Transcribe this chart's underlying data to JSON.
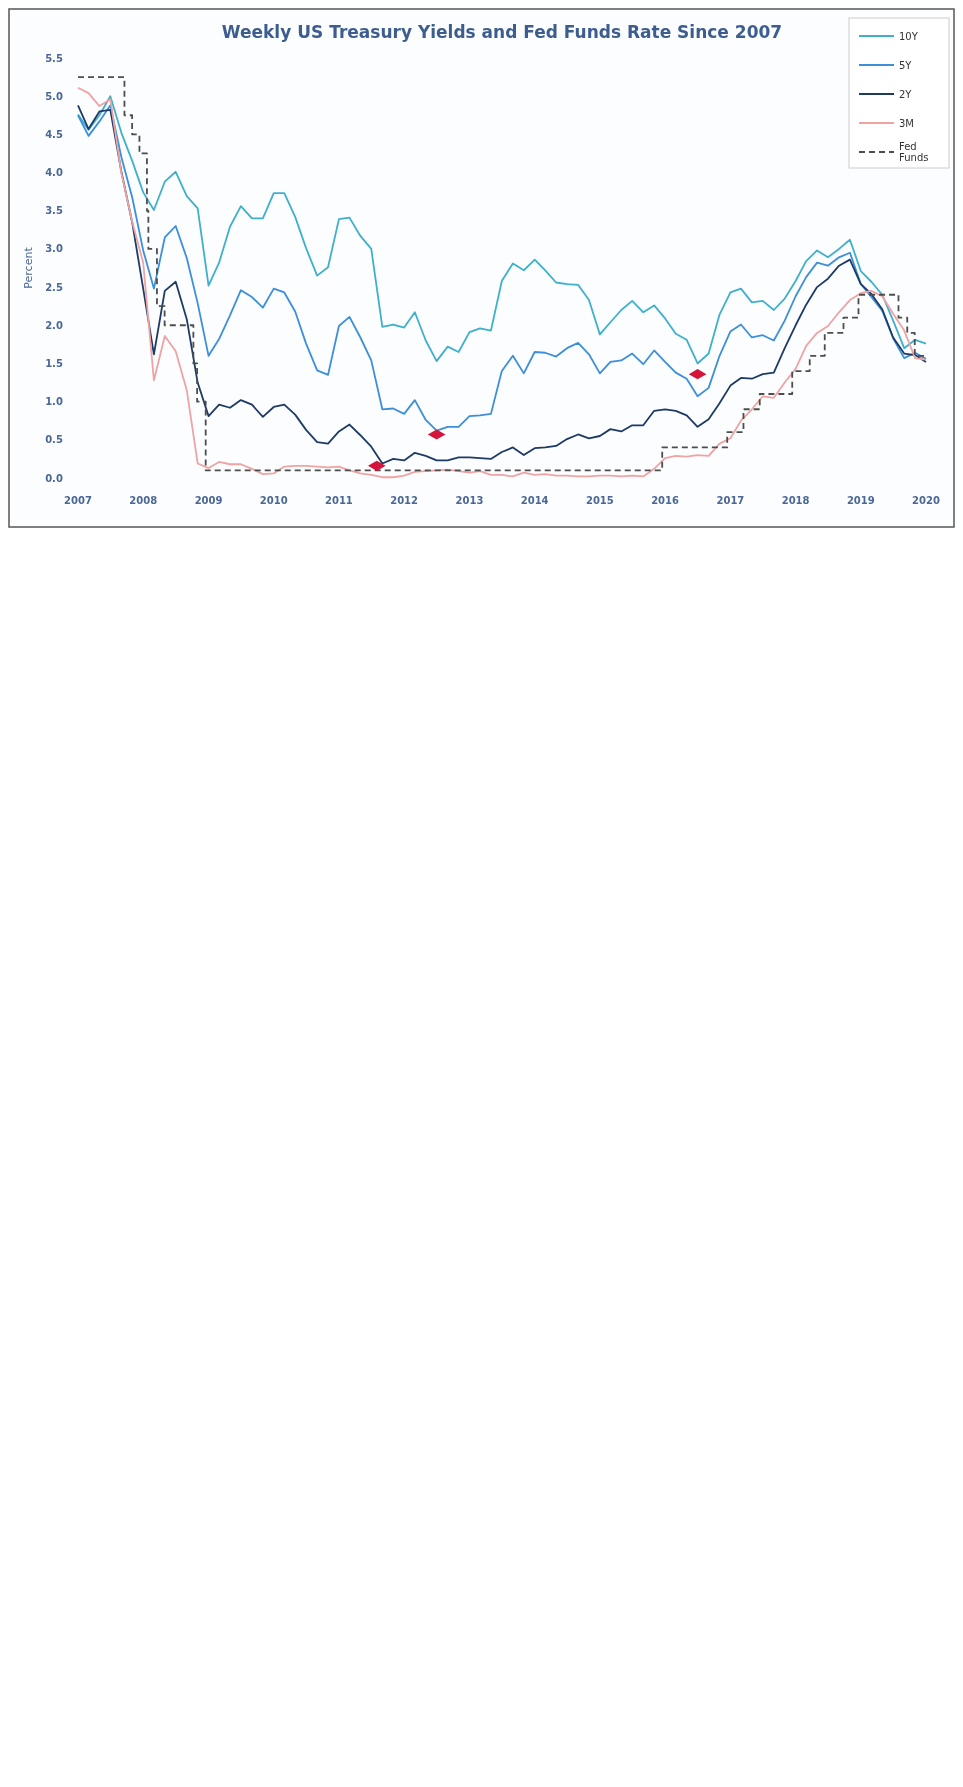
{
  "chart_data": {
    "type": "line",
    "title": "Weekly US Treasury Yields and Fed Funds Rate Since 2007",
    "ylabel": "Percent",
    "legend": "top right",
    "xlim": [
      "2007",
      "2020"
    ],
    "xticks": [
      "2007",
      "2008",
      "2009",
      "2010",
      "2011",
      "2012",
      "2013",
      "2014",
      "2015",
      "2016",
      "2017",
      "2018",
      "2019",
      "2020"
    ],
    "ylim": [
      0,
      5.5
    ],
    "yticks": [
      {
        "value": 0,
        "label": "0.0"
      },
      {
        "value": 0.5,
        "label": "0.5"
      },
      {
        "value": 1,
        "label": "1.0"
      },
      {
        "value": 1.5,
        "label": "1.5"
      },
      {
        "value": 2,
        "label": "2.0"
      },
      {
        "value": 2.5,
        "label": "2.5"
      },
      {
        "value": 3,
        "label": "3.0"
      },
      {
        "value": 3.5,
        "label": "3.5"
      },
      {
        "value": 4,
        "label": "4.0"
      },
      {
        "value": 4.5,
        "label": "4.5"
      },
      {
        "value": 5,
        "label": "5.0"
      },
      {
        "value": 5.5,
        "label": "5.5"
      }
    ],
    "x": [
      "2007-01",
      "2007-03",
      "2007-05",
      "2007-07",
      "2007-09",
      "2007-11",
      "2008-01",
      "2008-03",
      "2008-05",
      "2008-07",
      "2008-09",
      "2008-11",
      "2009-01",
      "2009-03",
      "2009-05",
      "2009-07",
      "2009-09",
      "2009-11",
      "2010-01",
      "2010-03",
      "2010-05",
      "2010-07",
      "2010-09",
      "2010-11",
      "2011-01",
      "2011-03",
      "2011-05",
      "2011-07",
      "2011-09",
      "2011-11",
      "2012-01",
      "2012-03",
      "2012-05",
      "2012-07",
      "2012-09",
      "2012-11",
      "2013-01",
      "2013-03",
      "2013-05",
      "2013-07",
      "2013-09",
      "2013-11",
      "2014-01",
      "2014-03",
      "2014-05",
      "2014-07",
      "2014-09",
      "2014-11",
      "2015-01",
      "2015-03",
      "2015-05",
      "2015-07",
      "2015-09",
      "2015-11",
      "2016-01",
      "2016-03",
      "2016-05",
      "2016-07",
      "2016-09",
      "2016-11",
      "2017-01",
      "2017-03",
      "2017-05",
      "2017-07",
      "2017-09",
      "2017-11",
      "2018-01",
      "2018-03",
      "2018-05",
      "2018-07",
      "2018-09",
      "2018-11",
      "2019-01",
      "2019-03",
      "2019-05",
      "2019-07",
      "2019-09",
      "2019-11",
      "2020-01"
    ],
    "series": [
      {
        "name": "10Y",
        "color": "#3fb0cc",
        "values": [
          4.76,
          4.56,
          4.75,
          5.0,
          4.52,
          4.15,
          3.74,
          3.51,
          3.88,
          4.01,
          3.69,
          3.53,
          2.52,
          2.82,
          3.29,
          3.56,
          3.4,
          3.4,
          3.73,
          3.73,
          3.42,
          3.01,
          2.65,
          2.76,
          3.39,
          3.41,
          3.17,
          3.0,
          1.98,
          2.01,
          1.97,
          2.17,
          1.8,
          1.53,
          1.72,
          1.65,
          1.91,
          1.96,
          1.93,
          2.58,
          2.81,
          2.72,
          2.86,
          2.72,
          2.56,
          2.54,
          2.53,
          2.33,
          1.88,
          2.04,
          2.2,
          2.32,
          2.17,
          2.26,
          2.09,
          1.89,
          1.81,
          1.5,
          1.63,
          2.14,
          2.43,
          2.48,
          2.3,
          2.32,
          2.2,
          2.35,
          2.58,
          2.84,
          2.98,
          2.89,
          3.0,
          3.12,
          2.71,
          2.57,
          2.4,
          2.06,
          1.7,
          1.81,
          1.76
        ]
      },
      {
        "name": "5Y",
        "color": "#3d8fd9",
        "values": [
          4.75,
          4.48,
          4.67,
          4.88,
          4.2,
          3.67,
          2.98,
          2.48,
          3.15,
          3.3,
          2.88,
          2.29,
          1.6,
          1.82,
          2.13,
          2.46,
          2.37,
          2.23,
          2.48,
          2.43,
          2.18,
          1.76,
          1.41,
          1.35,
          1.99,
          2.11,
          1.84,
          1.54,
          0.9,
          0.91,
          0.84,
          1.02,
          0.76,
          0.62,
          0.67,
          0.67,
          0.81,
          0.82,
          0.84,
          1.4,
          1.6,
          1.37,
          1.65,
          1.64,
          1.59,
          1.7,
          1.77,
          1.62,
          1.37,
          1.52,
          1.54,
          1.63,
          1.49,
          1.67,
          1.52,
          1.38,
          1.3,
          1.07,
          1.18,
          1.6,
          1.92,
          2.01,
          1.84,
          1.87,
          1.8,
          2.06,
          2.38,
          2.63,
          2.82,
          2.78,
          2.89,
          2.95,
          2.54,
          2.37,
          2.19,
          1.83,
          1.57,
          1.64,
          1.56
        ]
      },
      {
        "name": "2Y",
        "color": "#1e3a66",
        "values": [
          4.88,
          4.57,
          4.8,
          4.82,
          4.01,
          3.34,
          2.48,
          1.62,
          2.45,
          2.57,
          2.08,
          1.25,
          0.81,
          0.96,
          0.92,
          1.02,
          0.96,
          0.8,
          0.93,
          0.96,
          0.83,
          0.63,
          0.47,
          0.45,
          0.61,
          0.7,
          0.56,
          0.41,
          0.19,
          0.25,
          0.23,
          0.33,
          0.29,
          0.23,
          0.23,
          0.27,
          0.27,
          0.26,
          0.25,
          0.34,
          0.4,
          0.3,
          0.39,
          0.4,
          0.42,
          0.51,
          0.57,
          0.52,
          0.55,
          0.64,
          0.61,
          0.69,
          0.69,
          0.88,
          0.9,
          0.88,
          0.82,
          0.67,
          0.77,
          0.98,
          1.21,
          1.31,
          1.3,
          1.36,
          1.38,
          1.7,
          2.0,
          2.27,
          2.5,
          2.61,
          2.78,
          2.86,
          2.54,
          2.41,
          2.21,
          1.84,
          1.63,
          1.61,
          1.52
        ]
      },
      {
        "name": "3M",
        "color": "#f0a3a3",
        "values": [
          5.11,
          5.04,
          4.87,
          4.96,
          3.99,
          3.35,
          2.82,
          1.28,
          1.86,
          1.66,
          1.15,
          0.19,
          0.13,
          0.21,
          0.18,
          0.18,
          0.12,
          0.05,
          0.06,
          0.15,
          0.16,
          0.16,
          0.15,
          0.14,
          0.15,
          0.1,
          0.06,
          0.04,
          0.01,
          0.01,
          0.03,
          0.08,
          0.09,
          0.1,
          0.11,
          0.09,
          0.07,
          0.09,
          0.04,
          0.04,
          0.02,
          0.07,
          0.04,
          0.05,
          0.03,
          0.03,
          0.02,
          0.02,
          0.03,
          0.03,
          0.02,
          0.03,
          0.02,
          0.12,
          0.26,
          0.29,
          0.28,
          0.3,
          0.29,
          0.45,
          0.52,
          0.75,
          0.9,
          1.07,
          1.05,
          1.25,
          1.43,
          1.73,
          1.9,
          1.99,
          2.17,
          2.33,
          2.42,
          2.45,
          2.38,
          2.15,
          1.93,
          1.57,
          1.55
        ]
      },
      {
        "name": "Fed Funds",
        "type": "step",
        "color": "#4d4d4d",
        "line_style": "dashed",
        "x": [
          "2007-01",
          "2007-09-18",
          "2007-10-31",
          "2007-12-11",
          "2008-01-22",
          "2008-01-30",
          "2008-03-18",
          "2008-04-30",
          "2008-10-08",
          "2008-10-29",
          "2008-12-16",
          "2015-12-16",
          "2016-12-14",
          "2017-03-15",
          "2017-06-14",
          "2017-12-13",
          "2018-03-21",
          "2018-06-13",
          "2018-09-26",
          "2018-12-19",
          "2019-07-31",
          "2019-09-18",
          "2019-10-30",
          "2020-01"
        ],
        "values": [
          5.25,
          4.75,
          4.5,
          4.25,
          3.5,
          3.0,
          2.25,
          2.0,
          1.5,
          1.0,
          0.1,
          0.4,
          0.6,
          0.9,
          1.1,
          1.4,
          1.6,
          1.9,
          2.1,
          2.4,
          2.1,
          1.9,
          1.6,
          1.6
        ]
      },
      {
        "type": "scatter",
        "color": "#d4143a",
        "marker": "diamond",
        "x": [
          "2011-08",
          "2012-07",
          "2016-07"
        ],
        "values": [
          0.16,
          0.57,
          1.36
        ]
      }
    ]
  }
}
